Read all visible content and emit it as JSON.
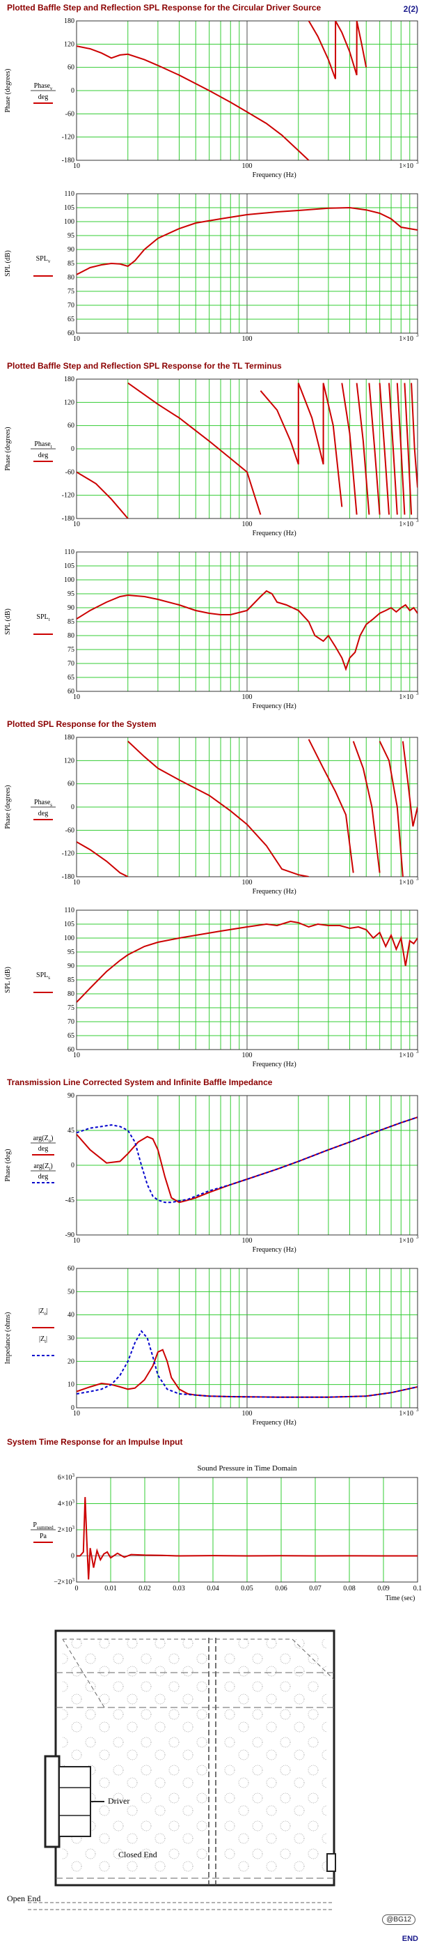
{
  "page": {
    "page_number": "2(2)",
    "end_label": "END",
    "stamp": "@BG12"
  },
  "sections": [
    {
      "id": "s1",
      "title": "Plotted Baffle Step and Reflection SPL Response for the Circular Driver Source"
    },
    {
      "id": "s2",
      "title": "Plotted Baffle Step and Reflection SPL Response for the TL Terminus"
    },
    {
      "id": "s3",
      "title": "Plotted SPL Response for the System"
    },
    {
      "id": "s4",
      "title": "Transmission Line Corrected System and Infinite Baffle Impedance"
    },
    {
      "id": "s5",
      "title": "System Time Response for an Impulse Input"
    }
  ],
  "diagram": {
    "labels": {
      "driver": "Driver",
      "closed_end": "Closed End",
      "open_end": "Open End"
    }
  },
  "chart_data": [
    {
      "id": "phase1",
      "type": "line",
      "xscale": "log",
      "xlim": [
        10,
        1000
      ],
      "ylim": [
        -180,
        180
      ],
      "yticks": [
        "180",
        "120",
        "60",
        "0",
        "-60",
        "-120",
        "-180"
      ],
      "xticks": [
        "10",
        "100",
        "1×10"
      ],
      "xtick_exp": "3",
      "xlabel": "Frequency (Hz)",
      "ylabel": "Phase (degrees)",
      "legend": {
        "num": "Phase",
        "sub": "v",
        "den": "deg"
      },
      "series": [
        {
          "color": "#cc0000",
          "dash": "",
          "x": [
            10,
            12,
            14,
            16,
            18,
            20,
            25,
            30,
            40,
            50,
            60,
            80,
            100,
            130,
            160,
            200,
            230,
            230.1,
            260,
            300,
            330,
            330.1,
            360,
            400,
            440,
            440.1,
            470,
            500
          ],
          "y": [
            115,
            108,
            97,
            84,
            92,
            94,
            80,
            65,
            40,
            18,
            0,
            -30,
            -55,
            -85,
            -115,
            -155,
            -180,
            180,
            140,
            80,
            30,
            180,
            150,
            100,
            40,
            180,
            120,
            60
          ]
        }
      ]
    },
    {
      "id": "spl1",
      "type": "line",
      "xscale": "log",
      "xlim": [
        10,
        1000
      ],
      "ylim": [
        60,
        110
      ],
      "yticks": [
        "110",
        "105",
        "100",
        "95",
        "90",
        "85",
        "80",
        "75",
        "70",
        "65",
        "60"
      ],
      "xticks": [
        "10",
        "100",
        "1×10"
      ],
      "xtick_exp": "3",
      "xlabel": "",
      "ylabel": "SPL (dB)",
      "legend": {
        "num": "SPL",
        "sub": "v",
        "den": ""
      },
      "series": [
        {
          "color": "#cc0000",
          "dash": "",
          "x": [
            10,
            12,
            14,
            16,
            18,
            20,
            22,
            25,
            30,
            40,
            50,
            70,
            100,
            150,
            200,
            300,
            400,
            500,
            600,
            700,
            800,
            1000
          ],
          "y": [
            81,
            83.5,
            84.5,
            85,
            84.8,
            84,
            86,
            90,
            94,
            97.5,
            99.5,
            101,
            102.5,
            103.5,
            104,
            104.8,
            105,
            104.2,
            103,
            101,
            98,
            97
          ]
        }
      ]
    },
    {
      "id": "phase2",
      "type": "line",
      "xscale": "log",
      "xlim": [
        10,
        1000
      ],
      "ylim": [
        -180,
        180
      ],
      "yticks": [
        "180",
        "120",
        "60",
        "0",
        "-60",
        "-120",
        "-180"
      ],
      "xticks": [
        "10",
        "100",
        "1×10"
      ],
      "xtick_exp": "3",
      "xlabel": "Frequency (Hz)",
      "ylabel": "Phase (degrees)",
      "legend": {
        "num": "Phase",
        "sub": "t",
        "den": "deg"
      },
      "series": [
        {
          "color": "#cc0000",
          "dash": "",
          "x": [
            10,
            13,
            16,
            20,
            20.01,
            30,
            40,
            60,
            80,
            100,
            120,
            120.01,
            150,
            180,
            200,
            200.01,
            240,
            280,
            280.01,
            320,
            360,
            360.01,
            400,
            440,
            440.01,
            480,
            520,
            520.01,
            560,
            600,
            600.01,
            640,
            680,
            680.01,
            720,
            760,
            760.01,
            800,
            840,
            840.01,
            880,
            920,
            920.01,
            960,
            1000
          ],
          "y": [
            -60,
            -90,
            -130,
            -180,
            170,
            115,
            80,
            20,
            -25,
            -60,
            -170,
            150,
            100,
            20,
            -40,
            170,
            80,
            -40,
            170,
            60,
            -150,
            170,
            40,
            -170,
            170,
            20,
            -170,
            170,
            0,
            -170,
            170,
            0,
            -170,
            170,
            0,
            -170,
            170,
            0,
            -170,
            170,
            0,
            -170,
            170,
            0,
            -100
          ]
        }
      ]
    },
    {
      "id": "spl2",
      "type": "line",
      "xscale": "log",
      "xlim": [
        10,
        1000
      ],
      "ylim": [
        60,
        110
      ],
      "yticks": [
        "110",
        "105",
        "100",
        "95",
        "90",
        "85",
        "80",
        "75",
        "70",
        "65",
        "60"
      ],
      "xticks": [
        "10",
        "100",
        "1×10"
      ],
      "xtick_exp": "3",
      "xlabel": "Frequency (Hz)",
      "ylabel": "SPL (dB)",
      "legend": {
        "num": "SPL",
        "sub": "t",
        "den": ""
      },
      "series": [
        {
          "color": "#cc0000",
          "dash": "",
          "x": [
            10,
            12,
            15,
            18,
            20,
            25,
            30,
            40,
            50,
            60,
            70,
            80,
            100,
            120,
            130,
            140,
            150,
            170,
            200,
            230,
            250,
            280,
            300,
            330,
            360,
            380,
            400,
            430,
            460,
            500,
            550,
            600,
            650,
            700,
            750,
            800,
            850,
            900,
            950,
            1000
          ],
          "y": [
            86,
            89,
            92,
            94,
            94.5,
            94,
            93,
            91,
            89,
            88,
            87.5,
            87.5,
            89,
            94,
            96,
            95,
            92,
            91,
            89,
            85,
            80,
            78,
            80,
            76,
            72,
            68,
            72,
            74,
            80,
            84,
            86,
            88,
            89,
            90,
            88.5,
            90,
            91,
            89,
            90,
            88
          ]
        }
      ]
    },
    {
      "id": "phase3",
      "type": "line",
      "xscale": "log",
      "xlim": [
        10,
        1000
      ],
      "ylim": [
        -180,
        180
      ],
      "yticks": [
        "180",
        "120",
        "60",
        "0",
        "-60",
        "-120",
        "-180"
      ],
      "xticks": [
        "10",
        "100",
        "1×10"
      ],
      "xtick_exp": "3",
      "xlabel": "Frequency (Hz)",
      "ylabel": "Phase (degrees)",
      "legend": {
        "num": "Phase",
        "sub": "s",
        "den": "deg"
      },
      "series": [
        {
          "color": "#cc0000",
          "dash": "",
          "x": [
            10,
            12,
            15,
            18,
            20,
            20.01,
            25,
            30,
            40,
            60,
            80,
            100,
            130,
            160,
            200,
            230,
            230.01,
            280,
            330,
            380,
            420,
            420.01,
            480,
            540,
            600,
            600.01,
            680,
            760,
            820,
            820.01,
            880,
            940,
            1000
          ],
          "y": [
            -90,
            -110,
            -140,
            -170,
            -180,
            170,
            130,
            100,
            70,
            30,
            -10,
            -45,
            -100,
            -160,
            -175,
            -180,
            175,
            100,
            40,
            -20,
            -170,
            170,
            100,
            0,
            -170,
            170,
            120,
            0,
            -180,
            170,
            60,
            -50,
            0
          ]
        }
      ]
    },
    {
      "id": "spl3",
      "type": "line",
      "xscale": "log",
      "xlim": [
        10,
        1000
      ],
      "ylim": [
        60,
        110
      ],
      "yticks": [
        "110",
        "105",
        "100",
        "95",
        "90",
        "85",
        "80",
        "75",
        "70",
        "65",
        "60"
      ],
      "xticks": [
        "10",
        "100",
        "1×10"
      ],
      "xtick_exp": "3",
      "xlabel": "Frequency (Hz)",
      "ylabel": "SPL (dB)",
      "legend": {
        "num": "SPL",
        "sub": "s",
        "den": ""
      },
      "series": [
        {
          "color": "#cc0000",
          "dash": "",
          "x": [
            10,
            12,
            15,
            18,
            20,
            25,
            30,
            40,
            50,
            70,
            100,
            130,
            150,
            180,
            200,
            230,
            260,
            300,
            350,
            400,
            450,
            500,
            550,
            600,
            650,
            700,
            750,
            800,
            850,
            900,
            950,
            1000
          ],
          "y": [
            77,
            82,
            88,
            92,
            94,
            97,
            98.5,
            100,
            101,
            102.5,
            104,
            105,
            104.5,
            106,
            105.5,
            104,
            105,
            104.5,
            104.5,
            103.5,
            104,
            103,
            100,
            102,
            97,
            101,
            96,
            100,
            90,
            99,
            98,
            100
          ]
        }
      ]
    },
    {
      "id": "impedance_phase",
      "type": "line",
      "xscale": "log",
      "xlim": [
        10,
        1000
      ],
      "ylim": [
        -90,
        90
      ],
      "yticks": [
        "90",
        "45",
        "0",
        "-45",
        "-90"
      ],
      "xticks": [
        "10",
        "100",
        "1×10"
      ],
      "xtick_exp": "3",
      "xlabel": "Frequency (Hz)",
      "ylabel": "Phase (deg)",
      "legend_rows": [
        {
          "num": "arg(Z",
          "sub": "o",
          "num_end": ")",
          "den": "deg",
          "color": "#cc0000",
          "dash": ""
        },
        {
          "num": "arg(Z",
          "sub": "t",
          "num_end": ")",
          "den": "deg",
          "color": "#0000cc",
          "dash": "4,3"
        }
      ],
      "series": [
        {
          "name": "",
          "color": "#cc0000",
          "dash": "",
          "x": [
            10,
            12,
            15,
            18,
            20,
            23,
            26,
            28,
            30,
            33,
            36,
            40,
            45,
            50,
            60,
            80,
            100,
            150,
            200,
            300,
            400,
            600,
            800,
            1000
          ],
          "y": [
            40,
            20,
            3,
            5,
            15,
            30,
            37,
            34,
            20,
            -15,
            -42,
            -48,
            -45,
            -42,
            -35,
            -25,
            -18,
            -5,
            5,
            20,
            30,
            45,
            55,
            62
          ]
        },
        {
          "name": "",
          "color": "#0000cc",
          "dash": "4,3",
          "x": [
            10,
            12,
            14,
            16,
            18,
            20,
            22,
            24,
            26,
            28,
            30,
            33,
            36,
            40,
            45,
            50,
            60,
            80,
            100,
            150,
            200,
            300,
            400,
            600,
            800,
            1000
          ],
          "y": [
            42,
            48,
            50,
            52,
            50,
            45,
            30,
            0,
            -25,
            -40,
            -45,
            -48,
            -48,
            -46,
            -44,
            -40,
            -33,
            -25,
            -18,
            -5,
            5,
            20,
            30,
            45,
            55,
            62
          ]
        }
      ]
    },
    {
      "id": "impedance_mag",
      "type": "line",
      "xscale": "log",
      "xlim": [
        10,
        1000
      ],
      "ylim": [
        0,
        60
      ],
      "yticks": [
        "60",
        "50",
        "40",
        "30",
        "20",
        "10",
        "0"
      ],
      "xticks": [
        "10",
        "100",
        "1×10"
      ],
      "xtick_exp": "3",
      "xlabel": "Frequency (Hz)",
      "ylabel": "Impedance (ohms)",
      "legend_rows": [
        {
          "num": "|Z",
          "sub": "o",
          "num_end": "|",
          "den": "",
          "color": "#cc0000",
          "dash": ""
        },
        {
          "num": "|Z",
          "sub": "t",
          "num_end": "|",
          "den": "",
          "color": "#0000cc",
          "dash": "4,3"
        }
      ],
      "series": [
        {
          "name": "",
          "color": "#cc0000",
          "dash": "",
          "x": [
            10,
            12,
            14,
            16,
            18,
            20,
            22,
            25,
            28,
            30,
            32,
            34,
            36,
            40,
            45,
            50,
            60,
            80,
            100,
            150,
            200,
            300,
            500,
            700,
            1000
          ],
          "y": [
            7,
            9,
            10.5,
            10,
            9,
            8,
            8.5,
            12,
            18,
            24,
            25,
            20,
            13,
            8,
            6,
            5.5,
            5,
            4.8,
            4.7,
            4.6,
            4.6,
            4.6,
            5,
            6.5,
            9
          ]
        },
        {
          "name": "",
          "color": "#0000cc",
          "dash": "4,3",
          "x": [
            10,
            12,
            14,
            16,
            18,
            20,
            22,
            24,
            26,
            28,
            30,
            34,
            40,
            50,
            60,
            80,
            100,
            150,
            200,
            300,
            500,
            700,
            1000
          ],
          "y": [
            6,
            7,
            8,
            10,
            14,
            20,
            28,
            33,
            30,
            22,
            14,
            8,
            6,
            5.5,
            5,
            4.8,
            4.7,
            4.6,
            4.6,
            4.6,
            5,
            6.5,
            9
          ]
        }
      ]
    },
    {
      "id": "impulse",
      "type": "line",
      "xscale": "linear",
      "title": "Sound Pressure in Time Domain",
      "xlim": [
        0,
        0.1
      ],
      "ylim": [
        -2000,
        6000
      ],
      "yticks": [
        "6×10",
        "4×10",
        "2×10",
        "0",
        "−2×10"
      ],
      "ytick_exp": "3",
      "xticks": [
        "0",
        "0.01",
        "0.02",
        "0.03",
        "0.04",
        "0.05",
        "0.06",
        "0.07",
        "0.08",
        "0.09",
        "0.1"
      ],
      "xlabel": "Time (sec)",
      "ylabel": "",
      "legend": {
        "num": "P",
        "sub": "summed",
        "den": "Pa"
      },
      "series": [
        {
          "color": "#cc0000",
          "dash": "",
          "x": [
            0,
            0.001,
            0.002,
            0.0025,
            0.003,
            0.0035,
            0.004,
            0.005,
            0.006,
            0.007,
            0.008,
            0.009,
            0.01,
            0.012,
            0.014,
            0.016,
            0.018,
            0.02,
            0.025,
            0.03,
            0.04,
            0.05,
            0.06,
            0.07,
            0.08,
            0.09,
            0.1
          ],
          "y": [
            0,
            0,
            300,
            4500,
            1200,
            -1800,
            600,
            -900,
            400,
            -300,
            150,
            300,
            -150,
            200,
            -100,
            100,
            80,
            60,
            40,
            0,
            20,
            0,
            10,
            0,
            5,
            0,
            0
          ]
        }
      ]
    }
  ]
}
